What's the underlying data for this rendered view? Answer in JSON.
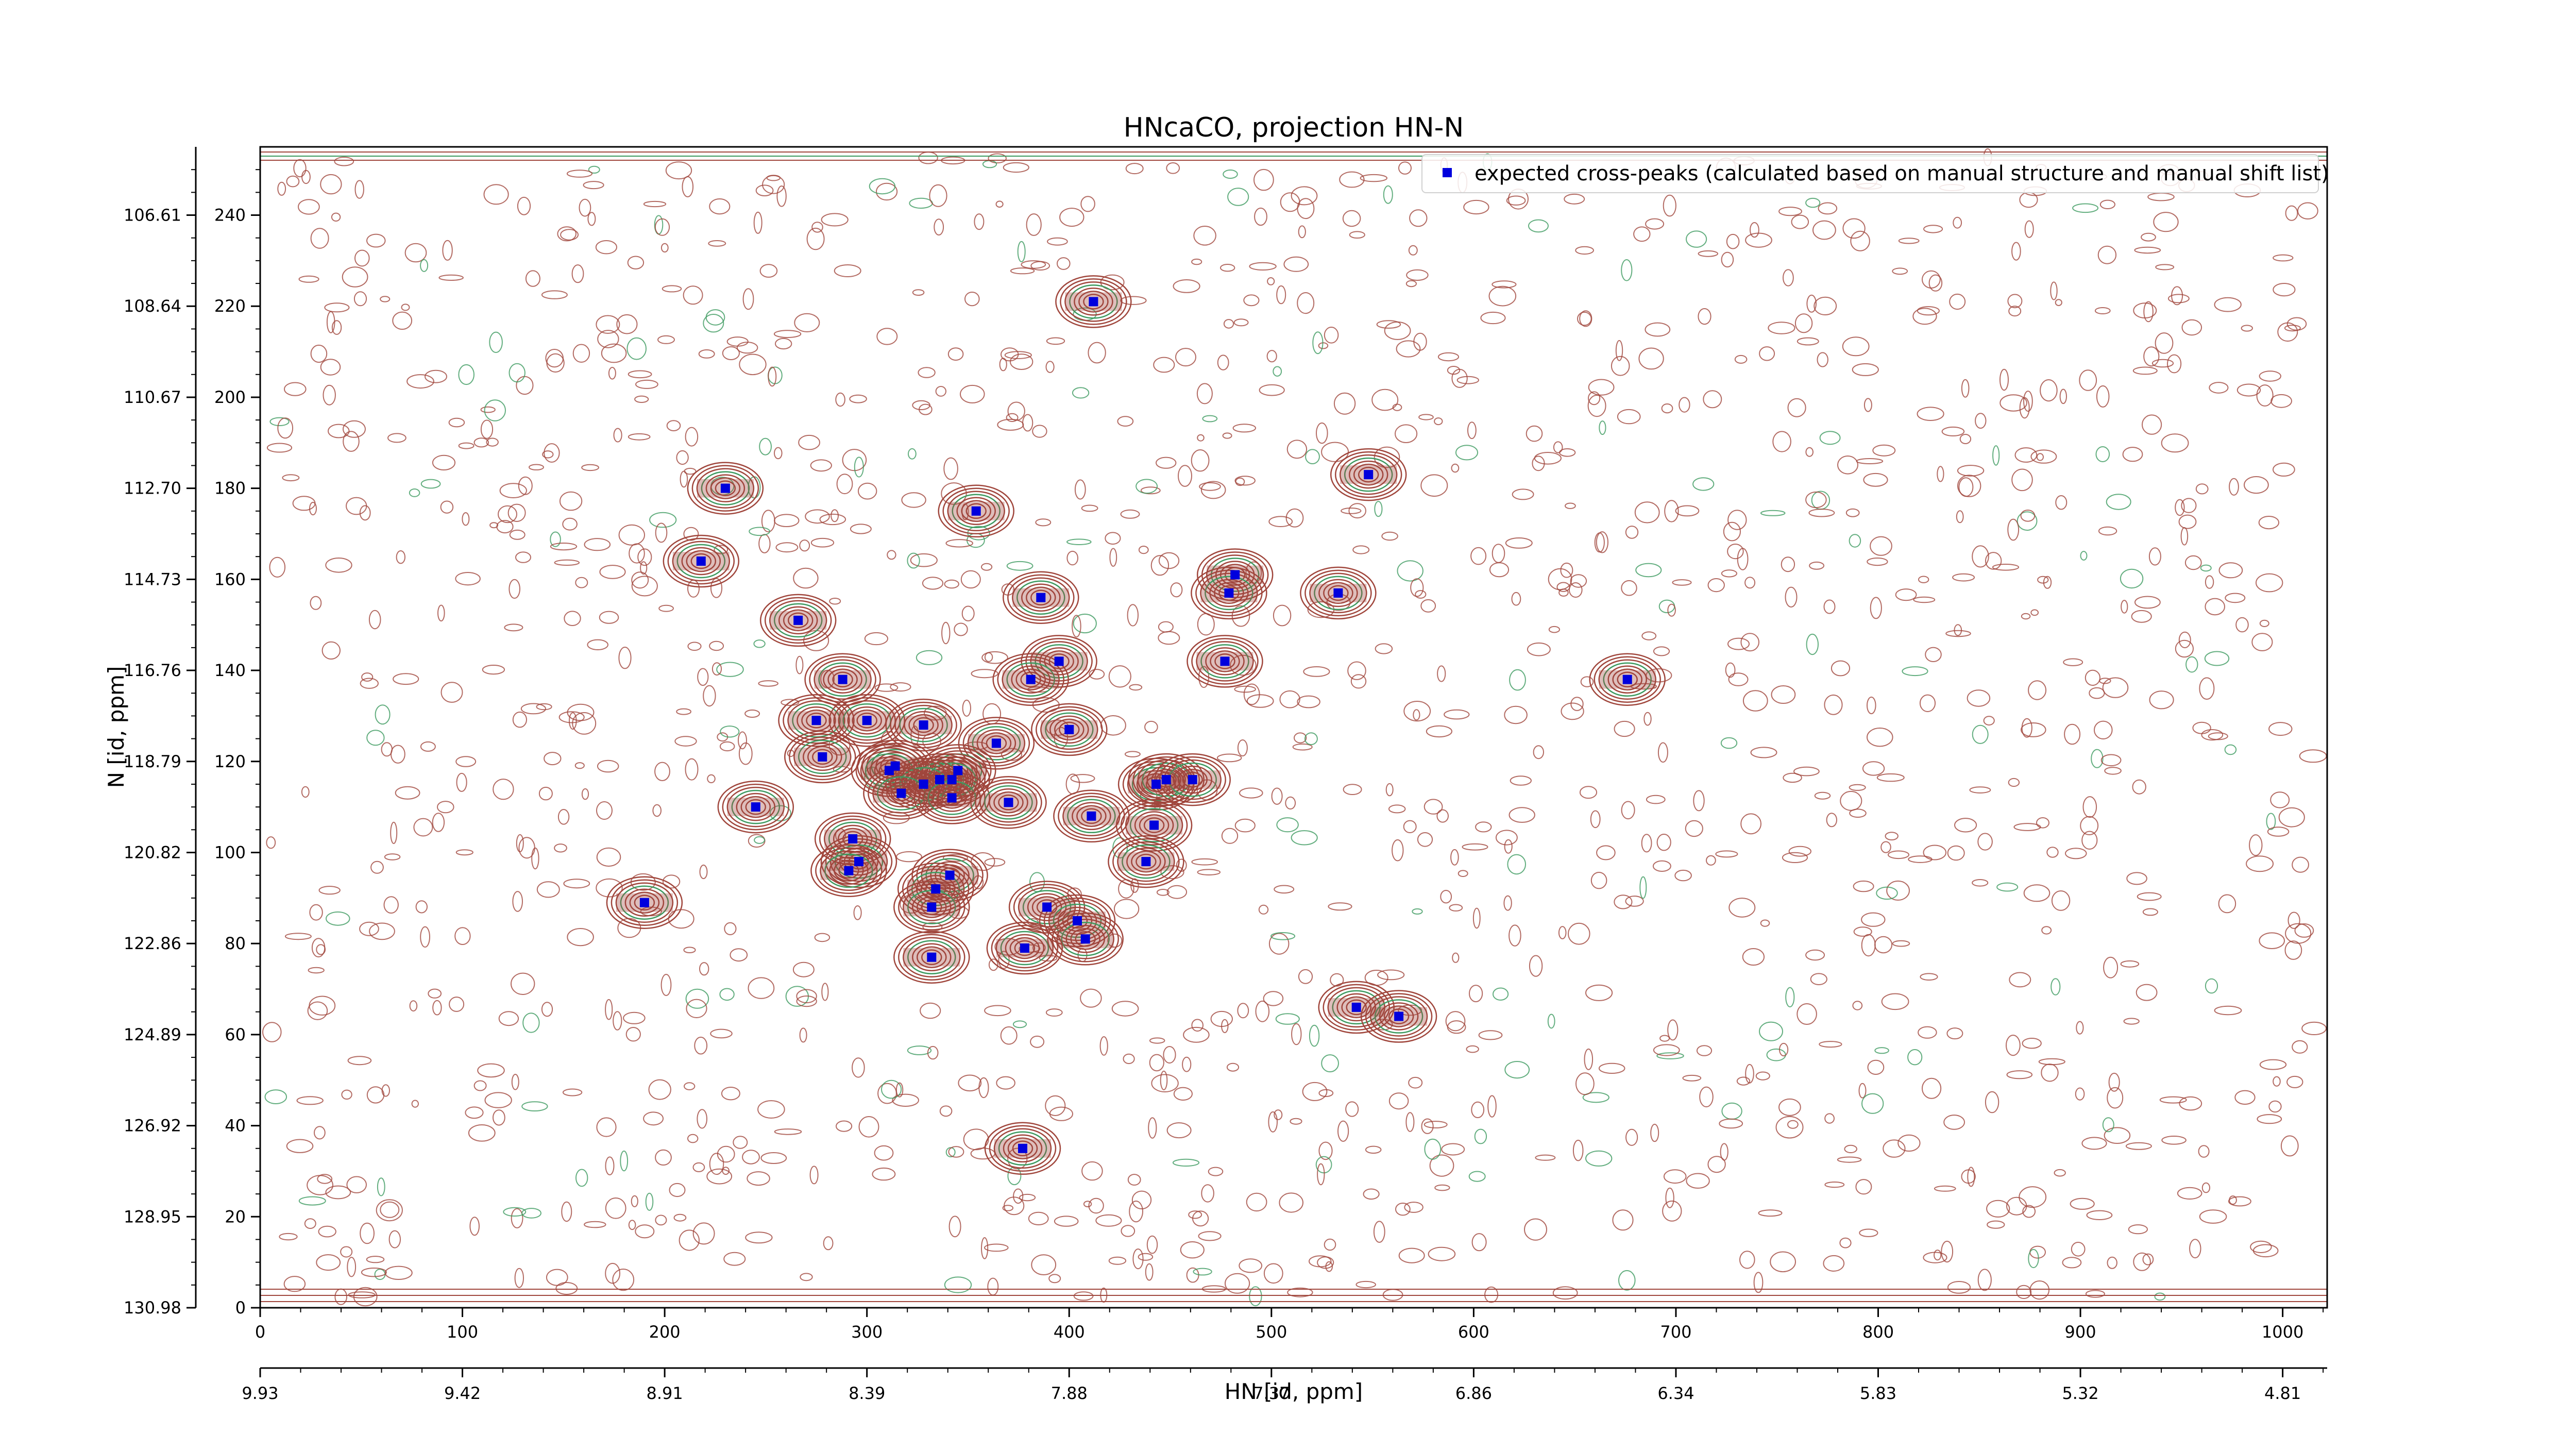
{
  "chart_data": {
    "type": "scatter",
    "title": "HNcaCO, projection HN-N",
    "xlabel": "HN [id, ppm]",
    "ylabel": "N [id, ppm]",
    "x_index_ticks": [
      "0",
      "100",
      "200",
      "300",
      "400",
      "500",
      "600",
      "700",
      "800",
      "900",
      "1000"
    ],
    "x_ppm_ticks": [
      "9.93",
      "9.42",
      "8.91",
      "8.39",
      "7.88",
      "7.37",
      "6.86",
      "6.34",
      "5.83",
      "5.32",
      "4.81"
    ],
    "y_index_ticks": [
      "0",
      "20",
      "40",
      "60",
      "80",
      "100",
      "120",
      "140",
      "160",
      "180",
      "200",
      "220",
      "240"
    ],
    "y_ppm_ticks": [
      "130.98",
      "128.95",
      "126.92",
      "124.89",
      "122.86",
      "120.82",
      "118.79",
      "116.76",
      "114.73",
      "112.70",
      "110.67",
      "108.64",
      "106.61"
    ],
    "xlim": [
      0,
      1022
    ],
    "ylim": [
      0,
      255
    ],
    "legend": {
      "label": "expected cross-peaks (calculated based on manual structure and manual shift list)",
      "position": "top-right"
    },
    "colors": {
      "points": "#0000dd",
      "positive_contour": "#a0463c",
      "negative_contour": "#3c9a5f"
    },
    "series": [
      {
        "name": "expected cross-peaks (calculated based on manual structure and manual shift list)",
        "points": [
          [
            412,
            221
          ],
          [
            230,
            180
          ],
          [
            548,
            183
          ],
          [
            354,
            175
          ],
          [
            218,
            164
          ],
          [
            482,
            161
          ],
          [
            479,
            157
          ],
          [
            533,
            157
          ],
          [
            386,
            156
          ],
          [
            266,
            151
          ],
          [
            477,
            142
          ],
          [
            395,
            142
          ],
          [
            381,
            138
          ],
          [
            288,
            138
          ],
          [
            676,
            138
          ],
          [
            275,
            129
          ],
          [
            300,
            129
          ],
          [
            328,
            128
          ],
          [
            400,
            127
          ],
          [
            364,
            124
          ],
          [
            278,
            121
          ],
          [
            314,
            119
          ],
          [
            311,
            118
          ],
          [
            345,
            118
          ],
          [
            336,
            116
          ],
          [
            342,
            116
          ],
          [
            328,
            115
          ],
          [
            317,
            113
          ],
          [
            342,
            112
          ],
          [
            370,
            111
          ],
          [
            245,
            110
          ],
          [
            411,
            108
          ],
          [
            443,
            115
          ],
          [
            448,
            116
          ],
          [
            461,
            116
          ],
          [
            442,
            106
          ],
          [
            438,
            98
          ],
          [
            293,
            103
          ],
          [
            296,
            98
          ],
          [
            291,
            96
          ],
          [
            341,
            95
          ],
          [
            334,
            92
          ],
          [
            332,
            88
          ],
          [
            389,
            88
          ],
          [
            404,
            85
          ],
          [
            190,
            89
          ],
          [
            408,
            81
          ],
          [
            378,
            79
          ],
          [
            332,
            77
          ],
          [
            542,
            66
          ],
          [
            563,
            64
          ],
          [
            377,
            35
          ]
        ]
      }
    ]
  }
}
